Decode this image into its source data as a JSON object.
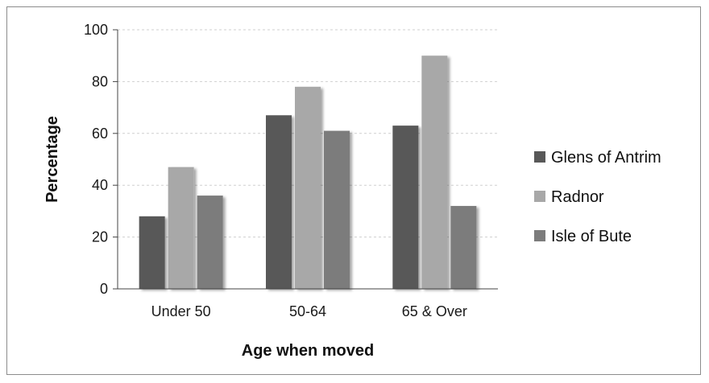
{
  "chart_data": {
    "type": "bar",
    "title": "",
    "xlabel": "Age when moved",
    "ylabel": "Percentage",
    "categories": [
      "Under 50",
      "50-64",
      "65 & Over"
    ],
    "ylim": [
      0,
      100
    ],
    "yticks": [
      0,
      20,
      40,
      60,
      80,
      100
    ],
    "grid": true,
    "legend_position": "right",
    "series": [
      {
        "name": "Glens of Antrim",
        "color": "#585858",
        "values": [
          28,
          67,
          63
        ]
      },
      {
        "name": "Radnor",
        "color": "#a8a8a8",
        "values": [
          47,
          78,
          90
        ]
      },
      {
        "name": "Isle of Bute",
        "color": "#7c7c7c",
        "values": [
          36,
          61,
          32
        ]
      }
    ]
  }
}
